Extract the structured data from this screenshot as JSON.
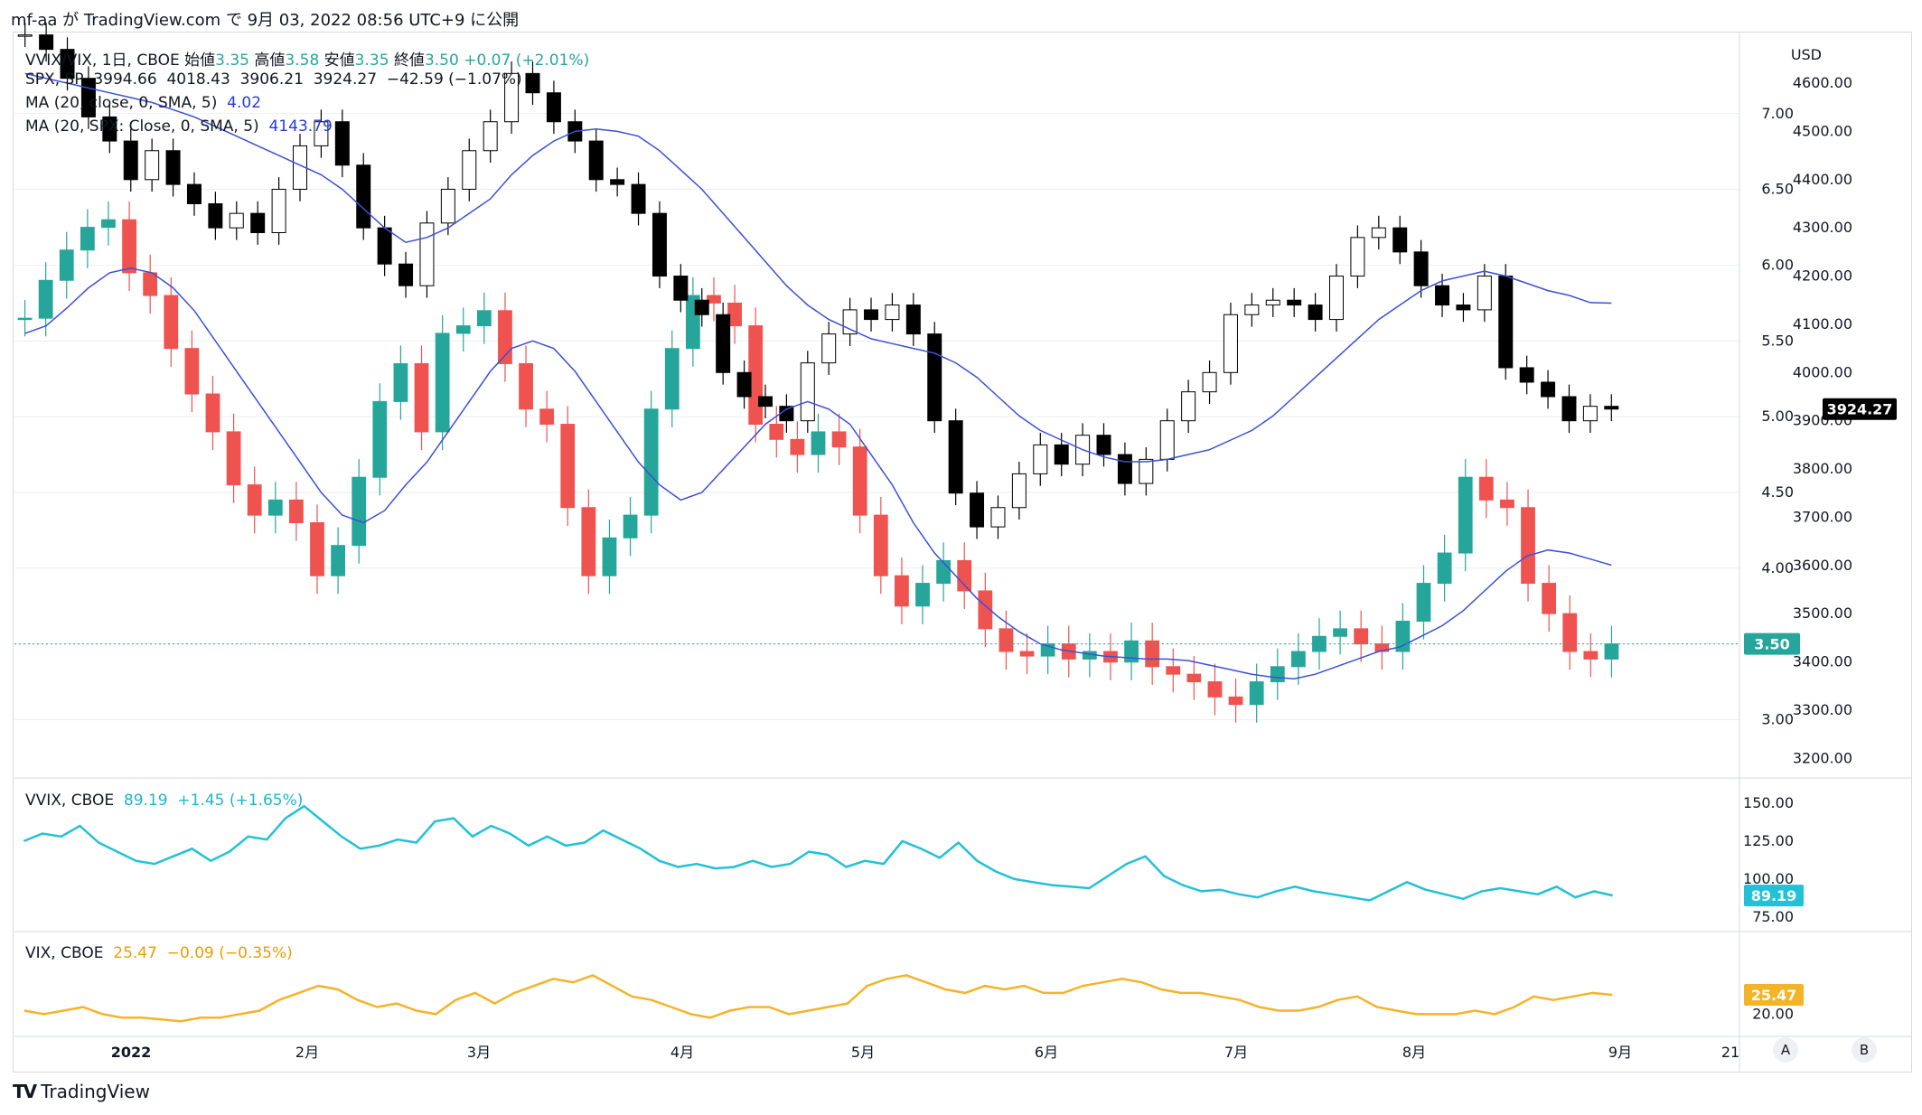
{
  "header": {
    "text": "mf-aa が TradingView.com で 9月 03, 2022 08:56 UTC+9 に公開"
  },
  "legend_main": {
    "vvix_vix": {
      "symbol": "VVIX/VIX, 1日, CBOE",
      "open_label": "始値",
      "open": "3.35",
      "high_label": "高値",
      "high": "3.58",
      "low_label": "安値",
      "low": "3.35",
      "close_label": "終値",
      "close": "3.50",
      "change": "+0.07 (+2.01%)"
    },
    "spx": {
      "symbol": "SPX, SP",
      "open": "3994.66",
      "high": "4018.43",
      "low": "3906.21",
      "close": "3924.27",
      "change": "−42.59 (−1.07%)"
    },
    "ma1": {
      "label": "MA (20, close, 0, SMA, 5)",
      "value": "4.02"
    },
    "ma2": {
      "label": "MA (20, SPX: Close, 0, SMA, 5)",
      "value": "4143.79"
    }
  },
  "legend_vvix": {
    "symbol": "VVIX, CBOE",
    "value": "89.19",
    "change": "+1.45 (+1.65%)"
  },
  "legend_vix": {
    "symbol": "VIX, CBOE",
    "value": "25.47",
    "change": "−0.09 (−0.35%)"
  },
  "footer": {
    "logo_text": "TradingView",
    "btn_a": "A",
    "btn_b": "B"
  },
  "colors": {
    "up": "#26a69a",
    "down": "#ef5350",
    "ma": "#3b4fd9",
    "vvix": "#22c1d6",
    "vix": "#f5b32a",
    "spx_candle": "#000000",
    "grid": "#e0e3eb"
  },
  "chart_data": [
    {
      "type": "candlestick",
      "name": "VVIX/VIX ratio",
      "axis": "left-scale",
      "ylim": [
        2.8,
        7.5
      ],
      "yticks": [
        3.0,
        3.5,
        4.0,
        4.5,
        5.0,
        5.5,
        6.0,
        6.5,
        7.0,
        7.5
      ],
      "last_value": "3.50",
      "closes": [
        5.65,
        5.9,
        6.1,
        6.25,
        6.3,
        5.95,
        5.8,
        5.45,
        5.15,
        4.9,
        4.55,
        4.35,
        4.45,
        4.3,
        3.95,
        4.15,
        4.6,
        5.1,
        5.35,
        4.9,
        5.55,
        5.6,
        5.7,
        5.35,
        5.05,
        4.95,
        4.4,
        3.95,
        4.2,
        4.35,
        5.05,
        5.45,
        5.8,
        5.75,
        5.6,
        4.95,
        4.85,
        4.75,
        4.9,
        4.8,
        4.35,
        3.95,
        3.75,
        3.9,
        4.05,
        3.85,
        3.6,
        3.45,
        3.42,
        3.5,
        3.4,
        3.45,
        3.38,
        3.52,
        3.35,
        3.3,
        3.25,
        3.15,
        3.1,
        3.25,
        3.35,
        3.45,
        3.55,
        3.6,
        3.5,
        3.45,
        3.65,
        3.9,
        4.1,
        4.6,
        4.45,
        4.4,
        3.9,
        3.7,
        3.45,
        3.4,
        3.5
      ]
    },
    {
      "type": "candlestick",
      "name": "SPX",
      "axis": "right-scale",
      "ylim": [
        3180,
        4660
      ],
      "yticks": [
        3200,
        3300,
        3400,
        3500,
        3600,
        3700,
        3800,
        3900,
        4000,
        4100,
        4200,
        4300,
        4400,
        4500,
        4600
      ],
      "unit": "USD",
      "last_value": "3924.27",
      "closes": [
        4700,
        4670,
        4610,
        4530,
        4480,
        4400,
        4460,
        4390,
        4350,
        4300,
        4330,
        4290,
        4380,
        4470,
        4520,
        4430,
        4300,
        4225,
        4180,
        4310,
        4380,
        4460,
        4520,
        4620,
        4580,
        4520,
        4480,
        4400,
        4390,
        4330,
        4200,
        4150,
        4120,
        4000,
        3950,
        3930,
        3900,
        4020,
        4080,
        4130,
        4110,
        4140,
        4080,
        3900,
        3750,
        3680,
        3720,
        3790,
        3850,
        3810,
        3870,
        3830,
        3770,
        3820,
        3900,
        3960,
        4000,
        4120,
        4140,
        4150,
        4140,
        4110,
        4200,
        4280,
        4300,
        4250,
        4180,
        4140,
        4130,
        4200,
        4010,
        3980,
        3950,
        3900,
        3930,
        3924.27
      ]
    },
    {
      "type": "line",
      "name": "VVIX",
      "ylim": [
        72,
        160
      ],
      "yticks": [
        75,
        100,
        125,
        150
      ],
      "last_value": "89.19",
      "values": [
        125,
        130,
        128,
        135,
        124,
        118,
        112,
        110,
        115,
        120,
        112,
        118,
        128,
        126,
        140,
        148,
        138,
        128,
        120,
        122,
        126,
        124,
        138,
        140,
        128,
        135,
        130,
        122,
        128,
        122,
        124,
        132,
        126,
        120,
        112,
        108,
        110,
        107,
        108,
        112,
        108,
        110,
        118,
        116,
        108,
        112,
        110,
        125,
        120,
        114,
        124,
        112,
        105,
        100,
        98,
        96,
        95,
        94,
        102,
        110,
        115,
        102,
        96,
        92,
        93,
        90,
        88,
        92,
        95,
        92,
        90,
        88,
        86,
        92,
        98,
        93,
        90,
        87,
        92,
        94,
        92,
        90,
        95,
        88,
        92,
        89.19
      ]
    },
    {
      "type": "line",
      "name": "VIX",
      "ylim": [
        16,
        38
      ],
      "yticks": [
        20.0
      ],
      "last_value": "25.47",
      "values": [
        21,
        20,
        21,
        22,
        20,
        19,
        19,
        18.5,
        18,
        19,
        19,
        20,
        21,
        24,
        26,
        28,
        27,
        24,
        22,
        23,
        21,
        20,
        24,
        26,
        23,
        26,
        28,
        30,
        29,
        31,
        28,
        25,
        24,
        22,
        20,
        19,
        21,
        22,
        22,
        20,
        21,
        22,
        23,
        28,
        30,
        31,
        29,
        27,
        26,
        28,
        27,
        28,
        26,
        26,
        28,
        29,
        30,
        29,
        27,
        26,
        26,
        25,
        24,
        22,
        21,
        21,
        22,
        24,
        25,
        22,
        21,
        20,
        20,
        20,
        21,
        20,
        22,
        25,
        24,
        25,
        26,
        25.47
      ]
    }
  ],
  "ma_data": {
    "ratio_ma": [
      5.55,
      5.6,
      5.72,
      5.85,
      5.95,
      5.98,
      5.95,
      5.85,
      5.7,
      5.5,
      5.3,
      5.1,
      4.9,
      4.7,
      4.5,
      4.35,
      4.3,
      4.38,
      4.55,
      4.7,
      4.9,
      5.1,
      5.3,
      5.45,
      5.5,
      5.45,
      5.3,
      5.1,
      4.9,
      4.7,
      4.55,
      4.45,
      4.5,
      4.65,
      4.8,
      4.95,
      5.05,
      5.1,
      5.05,
      4.95,
      4.75,
      4.55,
      4.3,
      4.1,
      3.95,
      3.8,
      3.68,
      3.58,
      3.5,
      3.46,
      3.44,
      3.42,
      3.41,
      3.4,
      3.4,
      3.39,
      3.36,
      3.33,
      3.3,
      3.28,
      3.27,
      3.3,
      3.35,
      3.4,
      3.45,
      3.48,
      3.55,
      3.62,
      3.72,
      3.85,
      3.98,
      4.08,
      4.12,
      4.1,
      4.06,
      4.02
    ],
    "spx_ma": [
      4620,
      4610,
      4600,
      4590,
      4580,
      4570,
      4560,
      4545,
      4530,
      4510,
      4490,
      4470,
      4450,
      4430,
      4410,
      4380,
      4340,
      4300,
      4270,
      4280,
      4300,
      4330,
      4360,
      4410,
      4450,
      4480,
      4500,
      4505,
      4500,
      4490,
      4460,
      4420,
      4380,
      4330,
      4280,
      4230,
      4180,
      4140,
      4110,
      4090,
      4070,
      4060,
      4050,
      4040,
      4020,
      3990,
      3950,
      3910,
      3880,
      3860,
      3840,
      3825,
      3815,
      3815,
      3820,
      3830,
      3840,
      3860,
      3880,
      3910,
      3950,
      3990,
      4030,
      4070,
      4110,
      4140,
      4170,
      4190,
      4200,
      4210,
      4200,
      4185,
      4170,
      4160,
      4145,
      4143.79
    ]
  },
  "x_axis": {
    "labels": [
      "2022",
      "2月",
      "3月",
      "4月",
      "5月",
      "6月",
      "7月",
      "8月",
      "9月",
      "21"
    ]
  }
}
